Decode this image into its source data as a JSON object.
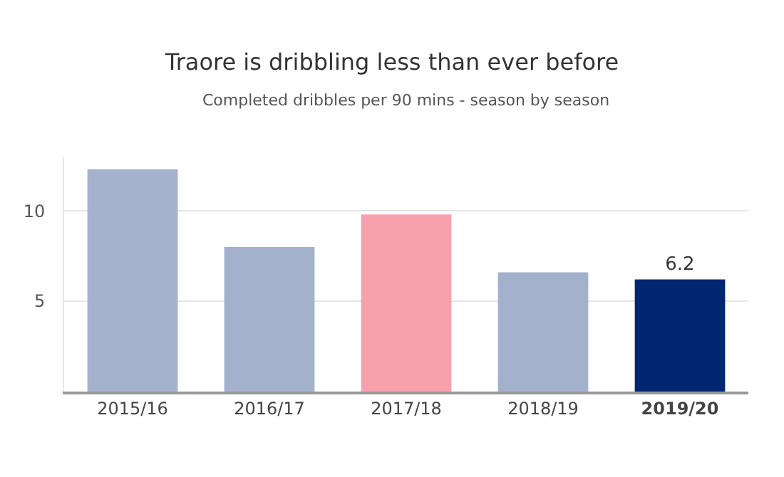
{
  "chart_data": {
    "type": "bar",
    "title": "Traore is dribbling less than ever before",
    "subtitle": "Completed dribbles per 90 mins - season by season",
    "categories": [
      "2015/16",
      "2016/17",
      "2017/18",
      "2018/19",
      "2019/20"
    ],
    "values": [
      12.3,
      8.0,
      9.8,
      6.6,
      6.2
    ],
    "colors": [
      "#a3b1cd",
      "#a3b1cd",
      "#f7a1ac",
      "#a3b1cd",
      "#022672"
    ],
    "value_labels": [
      null,
      null,
      null,
      null,
      "6.2"
    ],
    "ylim": [
      0,
      13
    ],
    "yticks": [
      5,
      10
    ],
    "grid": "y"
  }
}
